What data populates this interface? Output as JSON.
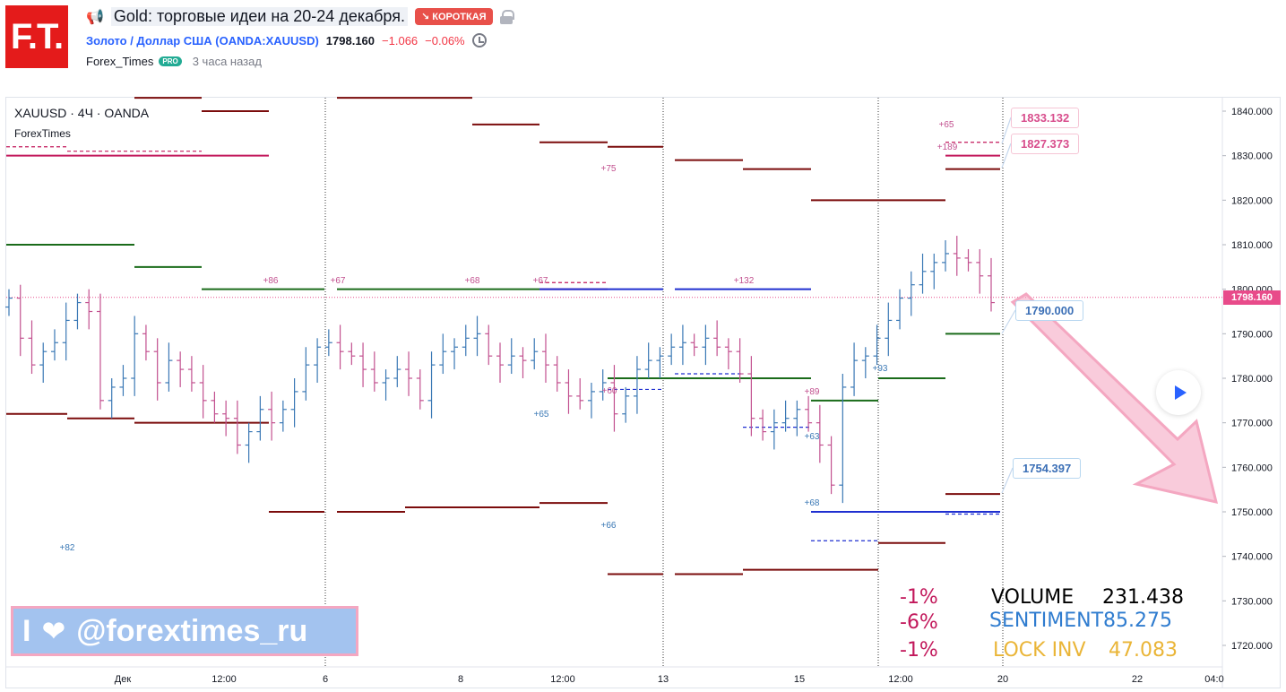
{
  "header": {
    "logo_text": "F.T.",
    "title": "Gold: торговые идеи на 20-24 декабря.",
    "badge": "↘ КОРОТКАЯ",
    "symbol_name": "Золото / Доллар США",
    "symbol_ticker": "(OANDA:XAUUSD)",
    "last_price": "1798.160",
    "change": "−1.066",
    "change_pct": "−0.06%",
    "author": "Forex_Times",
    "pro_badge": "PRO",
    "published": "3 часа назад"
  },
  "chart": {
    "symbol_label": "XAUUSD · 4Ч · OANDA",
    "indicator_label": "ForexTimes",
    "current_price_tag": "1798.160",
    "callouts": {
      "c1": "1833.132",
      "c2": "1827.373",
      "c3": "1790.000",
      "c4": "1754.397"
    },
    "colors": {
      "up": "#3a78b5",
      "down": "#c2508f",
      "resistance": "#7b0c0c",
      "support": "#1a6b1a",
      "pivot_blue": "#1f2fd0",
      "pivot_pink": "#c2185b"
    }
  },
  "chart_data": {
    "type": "bar",
    "title": "",
    "price_axis": [
      "1840.000",
      "1830.000",
      "1820.000",
      "1810.000",
      "1800.000",
      "1790.000",
      "1780.000",
      "1770.000",
      "1760.000",
      "1750.000",
      "1740.000",
      "1730.000",
      "1720.000"
    ],
    "ylim": [
      1716,
      1842
    ],
    "time_axis": [
      "Дек",
      "12:00",
      "6",
      "8",
      "12:00",
      "13",
      "15",
      "12:00",
      "20",
      "22",
      "04:0"
    ],
    "annotations": [
      "+86",
      "+67",
      "+68",
      "+67",
      "+132",
      "+75",
      "+60",
      "+65",
      "+66",
      "+82",
      "+89",
      "+63",
      "+68",
      "+93",
      "+65",
      "+189"
    ],
    "levels": [
      {
        "price": 1830,
        "color": "pink"
      },
      {
        "price": 1827.373,
        "color": "resistance"
      },
      {
        "price": 1820,
        "color": "resistance"
      },
      {
        "price": 1800,
        "color": "support"
      },
      {
        "price": 1800,
        "color": "pivot_blue"
      },
      {
        "price": 1790,
        "color": "support"
      },
      {
        "price": 1780,
        "color": "support"
      },
      {
        "price": 1775,
        "color": "support"
      },
      {
        "price": 1754.397,
        "color": "resistance"
      },
      {
        "price": 1750,
        "color": "pivot_blue"
      },
      {
        "price": 1743,
        "color": "resistance"
      }
    ],
    "arrow": {
      "from_price": 1798,
      "to_price": 1752,
      "direction": "down"
    }
  },
  "stats": {
    "pct1": "-1%",
    "pct2": "-6%",
    "pct3": "-1%",
    "volume_label": "VOLUME",
    "volume_value": "231.438",
    "sentiment_label": "SENTIMENT",
    "sentiment_value": "85.275",
    "lock_label": "LOCK INV",
    "lock_value": "47.083"
  },
  "watermark": {
    "left": "I",
    "handle": "@forextimes_ru",
    "icon": "heart-icon"
  }
}
